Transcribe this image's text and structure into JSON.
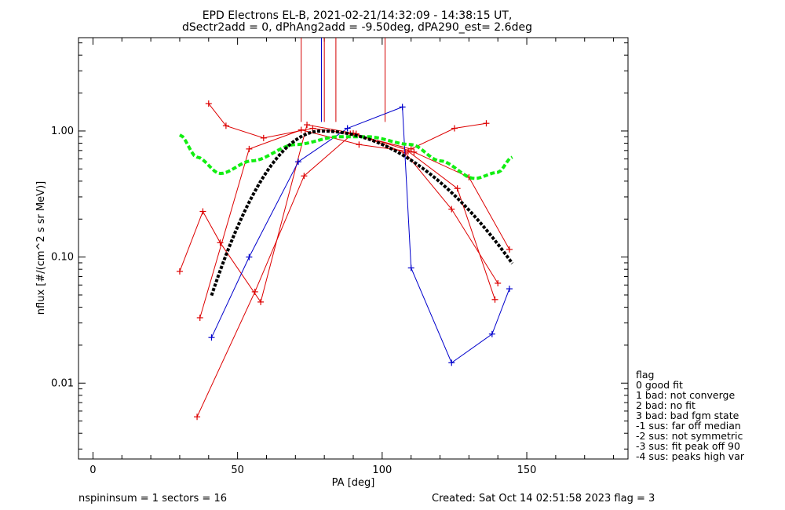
{
  "chart_data": {
    "type": "line",
    "title_line1": "EPD Electrons EL-B, 2021-02-21/14:32:09 - 14:38:15 UT,",
    "title_line2": "dSectr2add = 0, dPhAng2add = -9.50deg, dPA290_est=   2.6deg",
    "xlabel": "PA [deg]",
    "ylabel": "nflux [#/(cm^2 s sr MeV)]",
    "xlim": [
      -5,
      185
    ],
    "ylim": [
      0.0025,
      5.5
    ],
    "yscale": "log",
    "x_ticks": [
      0,
      50,
      100,
      150
    ],
    "x_tick_labels": [
      "0",
      "50",
      "100",
      "150"
    ],
    "y_ticks": [
      0.01,
      0.1,
      1.0
    ],
    "y_tick_labels": [
      "0.01",
      "0.10",
      "1.00"
    ],
    "red_series": [
      {
        "x": [
          30,
          38,
          44,
          58,
          74,
          91,
          108,
          124,
          140
        ],
        "y": [
          0.077,
          0.23,
          0.13,
          0.044,
          1.12,
          0.95,
          0.67,
          0.24,
          0.062
        ]
      },
      {
        "x": [
          40,
          46,
          59,
          76,
          89,
          110,
          125,
          136
        ],
        "y": [
          1.65,
          1.1,
          0.88,
          1.05,
          0.95,
          0.72,
          1.05,
          1.15
        ]
      },
      {
        "x": [
          37,
          54,
          72,
          92,
          109,
          126,
          139
        ],
        "y": [
          0.033,
          0.72,
          1.02,
          0.78,
          0.69,
          0.35,
          0.046
        ]
      },
      {
        "x": [
          36,
          56,
          73,
          90,
          111,
          130,
          144
        ],
        "y": [
          0.0054,
          0.053,
          0.44,
          0.96,
          0.68,
          0.43,
          0.115
        ]
      }
    ],
    "blue_series": [
      {
        "x": [
          41,
          54,
          71,
          88,
          107,
          110,
          124,
          138,
          144
        ],
        "y": [
          0.023,
          0.1,
          0.57,
          1.05,
          1.55,
          0.082,
          0.0145,
          0.0245,
          0.056
        ]
      }
    ],
    "vertical_lines": [
      {
        "x": 72,
        "color": "#d40000",
        "y_bottom": 1.18
      },
      {
        "x": 79,
        "color": "#0000cc",
        "y_bottom": 1.18
      },
      {
        "x": 80,
        "color": "#d40000",
        "y_bottom": 1.18
      },
      {
        "x": 84,
        "color": "#d40000",
        "y_bottom": 1.18
      },
      {
        "x": 101,
        "color": "#d40000",
        "y_bottom": 1.18
      }
    ],
    "fit_curve": {
      "color": "#000000",
      "x_range": [
        41,
        145
      ],
      "center": 79,
      "peak": 1.0,
      "sigma_left": 15.5,
      "sigma_right": 30,
      "width_right_factor": 0.9
    },
    "median_curve": {
      "color": "#11ee11",
      "x_range": [
        30,
        145
      ]
    },
    "legend_lines": [
      "flag",
      " 0 good fit",
      " 1 bad: not converge",
      " 2 bad: no fit",
      " 3 bad: bad fgm state",
      "-1 sus: far off median",
      "-2 sus: not symmetric",
      "-3 sus: fit peak off 90",
      "-4 sus: peaks high var"
    ],
    "footer_left": "nspininsum =  1  sectors = 16",
    "footer_right": "Created: Sat Oct 14 02:51:58 2023   flag = 3",
    "colors": {
      "data_red": "#dd0000",
      "data_blue": "#0000cc",
      "fit": "#000000",
      "median": "#11ee11"
    }
  }
}
